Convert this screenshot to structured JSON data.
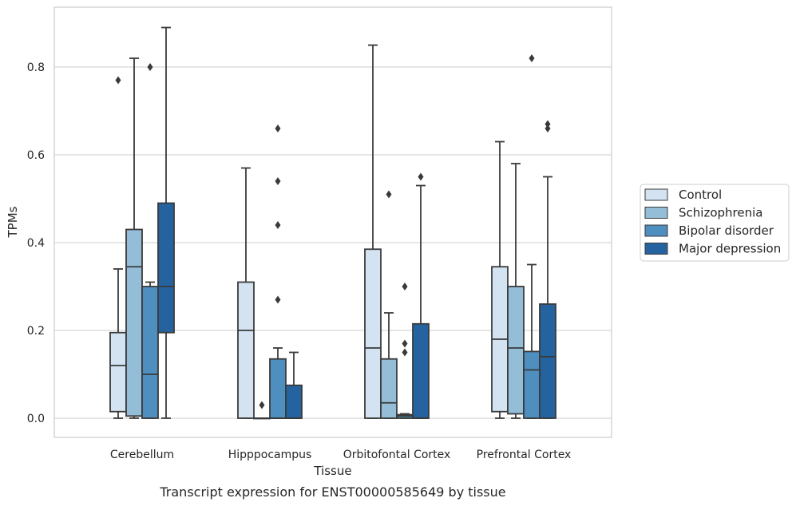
{
  "chart_data": {
    "type": "box",
    "xlabel": "Tissue",
    "ylabel": "TPMs",
    "caption": "Transcript expression for ENST00000585649 by tissue",
    "ylim": [
      -0.043,
      0.94
    ],
    "yticks": [
      0.0,
      0.2,
      0.4,
      0.6,
      0.8
    ],
    "ytick_labels": [
      "0.0",
      "0.2",
      "0.4",
      "0.6",
      "0.8"
    ],
    "grid": true,
    "legend_position": "right",
    "categories": [
      "Cerebellum",
      "Hipppocampus",
      "Orbitofontal Cortex",
      "Prefrontal Cortex"
    ],
    "series": [
      {
        "name": "Control",
        "color": "#d3e3f1",
        "boxes": [
          {
            "whislo": 0.0,
            "q1": 0.015,
            "med": 0.12,
            "q3": 0.195,
            "whishi": 0.34,
            "fliers": [
              0.77
            ]
          },
          {
            "whislo": 0.0,
            "q1": 0.0,
            "med": 0.2,
            "q3": 0.31,
            "whishi": 0.57,
            "fliers": []
          },
          {
            "whislo": 0.0,
            "q1": 0.0,
            "med": 0.16,
            "q3": 0.385,
            "whishi": 0.85,
            "fliers": []
          },
          {
            "whislo": 0.0,
            "q1": 0.015,
            "med": 0.18,
            "q3": 0.345,
            "whishi": 0.63,
            "fliers": []
          }
        ]
      },
      {
        "name": "Schizophrenia",
        "color": "#94bdd8",
        "boxes": [
          {
            "whislo": 0.0,
            "q1": 0.005,
            "med": 0.345,
            "q3": 0.43,
            "whishi": 0.82,
            "fliers": []
          },
          {
            "whislo": 0.0,
            "q1": 0.0,
            "med": 0.0,
            "q3": 0.0,
            "whishi": 0.0,
            "fliers": [
              0.03
            ]
          },
          {
            "whislo": 0.0,
            "q1": 0.0,
            "med": 0.035,
            "q3": 0.135,
            "whishi": 0.24,
            "fliers": [
              0.51
            ]
          },
          {
            "whislo": 0.0,
            "q1": 0.01,
            "med": 0.16,
            "q3": 0.3,
            "whishi": 0.58,
            "fliers": []
          }
        ]
      },
      {
        "name": "Bipolar disorder",
        "color": "#4f8fc0",
        "boxes": [
          {
            "whislo": 0.0,
            "q1": 0.0,
            "med": 0.1,
            "q3": 0.3,
            "whishi": 0.31,
            "fliers": [
              0.8
            ]
          },
          {
            "whislo": 0.0,
            "q1": 0.0,
            "med": 0.0,
            "q3": 0.135,
            "whishi": 0.16,
            "fliers": [
              0.27,
              0.44,
              0.54,
              0.66
            ]
          },
          {
            "whislo": 0.0,
            "q1": 0.0,
            "med": 0.005,
            "q3": 0.008,
            "whishi": 0.01,
            "fliers": [
              0.15,
              0.17,
              0.3
            ]
          },
          {
            "whislo": 0.0,
            "q1": 0.0,
            "med": 0.11,
            "q3": 0.152,
            "whishi": 0.35,
            "fliers": [
              0.82
            ]
          }
        ]
      },
      {
        "name": "Major depression",
        "color": "#2563a0",
        "boxes": [
          {
            "whislo": 0.0,
            "q1": 0.195,
            "med": 0.3,
            "q3": 0.49,
            "whishi": 0.89,
            "fliers": []
          },
          {
            "whislo": 0.0,
            "q1": 0.0,
            "med": 0.0,
            "q3": 0.075,
            "whishi": 0.15,
            "fliers": []
          },
          {
            "whislo": 0.0,
            "q1": 0.0,
            "med": 0.0,
            "q3": 0.215,
            "whishi": 0.53,
            "fliers": [
              0.55
            ]
          },
          {
            "whislo": 0.0,
            "q1": 0.0,
            "med": 0.14,
            "q3": 0.26,
            "whishi": 0.55,
            "fliers": [
              0.66,
              0.67
            ]
          }
        ]
      }
    ]
  }
}
